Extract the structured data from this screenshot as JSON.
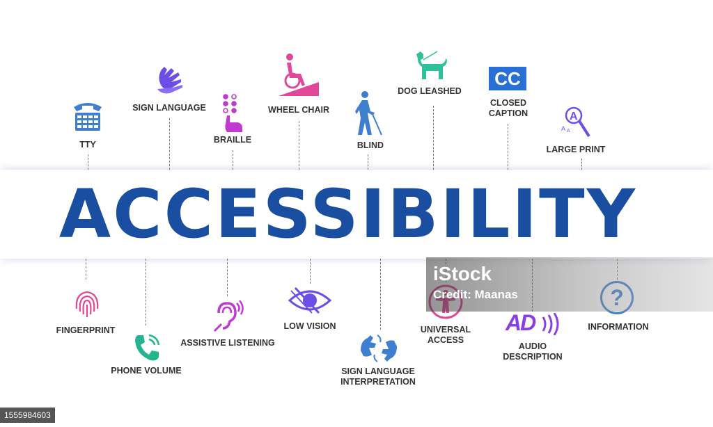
{
  "title": "ACCESSIBILITY",
  "colors": {
    "title": "#1a4ea1",
    "blue": "#3f7fd0",
    "violet": "#6c4ee6",
    "magenta": "#c03ad0",
    "pink": "#e2479a",
    "green": "#2ec19a",
    "teal": "#24b48f"
  },
  "top_items": [
    {
      "label": "TTY",
      "icon": "tty-phone-icon"
    },
    {
      "label": "SIGN LANGUAGE",
      "icon": "sign-language-hands-icon"
    },
    {
      "label": "BRAILLE",
      "icon": "braille-icon"
    },
    {
      "label": "WHEEL CHAIR",
      "icon": "wheelchair-icon"
    },
    {
      "label": "BLIND",
      "icon": "blind-person-cane-icon"
    },
    {
      "label": "DOG LEASHED",
      "icon": "dog-leashed-icon"
    },
    {
      "label": "CLOSED\nCAPTION",
      "line1": "CLOSED",
      "line2": "CAPTION",
      "icon": "closed-caption-icon",
      "icon_text": "CC"
    },
    {
      "label": "LARGE PRINT",
      "icon": "large-print-magnifier-icon"
    }
  ],
  "bottom_items": [
    {
      "label": "FINGERPRINT",
      "icon": "fingerprint-icon"
    },
    {
      "label": "PHONE VOLUME",
      "icon": "phone-volume-icon"
    },
    {
      "label": "ASSISTIVE LISTENING",
      "icon": "assistive-listening-ear-icon"
    },
    {
      "label": "LOW VISION",
      "icon": "low-vision-eye-icon"
    },
    {
      "line1": "SIGN LANGUAGE",
      "line2": "INTERPRETATION",
      "icon": "sign-interpretation-icon"
    },
    {
      "line1": "UNIVERSAL",
      "line2": "ACCESS",
      "icon": "universal-access-icon"
    },
    {
      "line1": "AUDIO",
      "line2": "DESCRIPTION",
      "icon": "audio-description-icon",
      "icon_text": "AD"
    },
    {
      "label": "INFORMATION",
      "icon": "information-question-icon",
      "icon_text": "?"
    }
  ],
  "watermark": {
    "brand": "iStock",
    "credit": "Credit: Maanas"
  },
  "stock_id": "1555984603"
}
